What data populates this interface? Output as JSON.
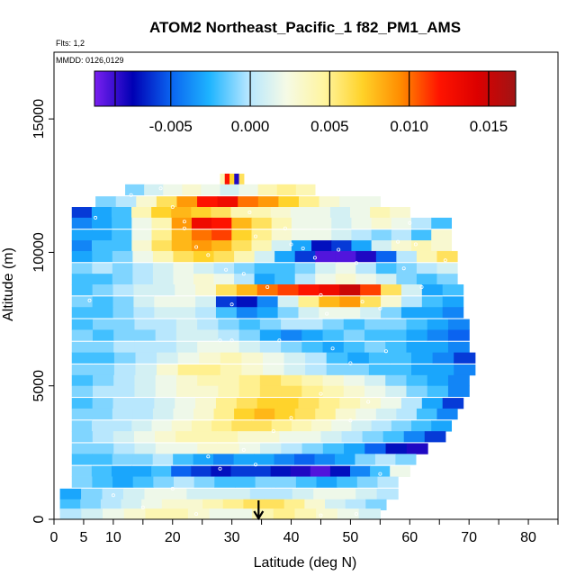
{
  "chart_data": {
    "type": "heatmap",
    "title": "ATOM2 Northeast_Pacific_1 f82_PM1_AMS",
    "subtitle_flights": "Flts: 1,2",
    "subtitle_dates": "MMDD: 0126,0129",
    "xlabel": "Latitude (deg N)",
    "ylabel": "Altitude (m)",
    "xlim": [
      0,
      85
    ],
    "ylim": [
      0,
      17500
    ],
    "x_ticks": [
      0,
      5,
      10,
      20,
      30,
      40,
      50,
      60,
      70,
      80
    ],
    "y_ticks": [
      0,
      5000,
      10000,
      15000
    ],
    "colorbar": {
      "min": -0.0098,
      "max": 0.0167,
      "ticks": [
        -0.005,
        0.0,
        0.005,
        0.01,
        0.015
      ],
      "tick_labels": [
        "-0.005",
        "0.000",
        "0.005",
        "0.010",
        "0.015"
      ],
      "colors": [
        "#7a1ff0",
        "#0000b4",
        "#0a64f0",
        "#1eb4ff",
        "#b4e6ff",
        "#f5fae6",
        "#fff5a0",
        "#ffd228",
        "#ff8c00",
        "#ff1400",
        "#dc0000",
        "#a01414"
      ]
    },
    "arrow_latitude": 34.5,
    "cells": [
      {
        "alt": 12750,
        "lat0": 28,
        "lat1": 32,
        "values": [
          0.004,
          0.012,
          0.007,
          -0.008,
          0.006
        ]
      },
      {
        "alt": 12350,
        "lat0": 12,
        "lat1": 44,
        "values": [
          -0.001,
          0.001,
          0.002,
          0.003,
          0.002,
          0.001,
          0.002,
          0.004,
          0.005,
          0.004
        ]
      },
      {
        "alt": 11900,
        "lat0": 7,
        "lat1": 55,
        "values": [
          -0.001,
          0.0,
          0.003,
          0.006,
          0.009,
          0.012,
          0.013,
          0.01,
          0.009,
          0.007,
          0.005,
          0.003,
          0.002,
          0.002
        ]
      },
      {
        "alt": 11500,
        "lat0": 3,
        "lat1": 60,
        "values": [
          -0.006,
          -0.003,
          -0.002,
          0.004,
          0.007,
          0.008,
          0.007,
          0.006,
          0.004,
          0.004,
          0.003,
          0.002,
          0.002,
          0.001,
          0.002,
          0.004,
          0.003
        ]
      },
      {
        "alt": 11100,
        "lat0": 3,
        "lat1": 67,
        "values": [
          -0.004,
          -0.003,
          -0.002,
          0.002,
          0.004,
          0.009,
          0.013,
          0.012,
          0.008,
          0.006,
          0.004,
          0.002,
          0.002,
          0.001,
          0.002,
          0.003,
          0.002,
          0.0,
          -0.002
        ]
      },
      {
        "alt": 10650,
        "lat0": 3,
        "lat1": 67,
        "values": [
          -0.003,
          -0.003,
          -0.002,
          0.002,
          0.005,
          0.008,
          0.01,
          0.011,
          0.007,
          0.005,
          0.003,
          0.002,
          0.002,
          0.001,
          0.0,
          -0.001,
          0.0,
          -0.002,
          0.003
        ]
      },
      {
        "alt": 10250,
        "lat0": 3,
        "lat1": 67,
        "values": [
          -0.004,
          -0.002,
          -0.002,
          0.003,
          0.006,
          0.008,
          0.009,
          0.008,
          0.006,
          0.004,
          0.001,
          -0.003,
          -0.007,
          -0.006,
          -0.003,
          0.001,
          0.003,
          0.004,
          0.003
        ]
      },
      {
        "alt": 9850,
        "lat0": 3,
        "lat1": 68,
        "values": [
          -0.003,
          -0.002,
          -0.001,
          0.002,
          0.004,
          0.006,
          0.007,
          0.006,
          0.004,
          0.001,
          -0.003,
          -0.006,
          -0.009,
          -0.009,
          -0.008,
          -0.005,
          0.0,
          0.004,
          0.006
        ]
      },
      {
        "alt": 9400,
        "lat0": 3,
        "lat1": 68,
        "values": [
          -0.001,
          0.0,
          -0.001,
          0.0,
          0.001,
          0.002,
          0.001,
          0.0,
          -0.001,
          -0.002,
          -0.002,
          -0.001,
          0.001,
          0.002,
          0.0,
          -0.002,
          -0.001,
          0.0,
          0.001
        ]
      },
      {
        "alt": 9000,
        "lat0": 3,
        "lat1": 68,
        "values": [
          -0.002,
          -0.002,
          -0.001,
          0.0,
          0.001,
          0.002,
          0.003,
          0.002,
          0.0,
          -0.003,
          -0.002,
          0.0,
          0.002,
          0.003,
          0.002,
          0.001,
          -0.001,
          -0.002,
          -0.001
        ]
      },
      {
        "alt": 8600,
        "lat0": 3,
        "lat1": 69,
        "values": [
          -0.002,
          -0.001,
          0.0,
          0.001,
          0.001,
          0.002,
          0.003,
          0.006,
          0.008,
          0.01,
          0.011,
          0.012,
          0.013,
          0.015,
          0.011,
          0.006,
          0.001,
          -0.003,
          -0.002
        ]
      },
      {
        "alt": 8150,
        "lat0": 3,
        "lat1": 69,
        "values": [
          -0.001,
          -0.002,
          -0.001,
          0.001,
          0.002,
          0.002,
          0.001,
          -0.006,
          -0.007,
          -0.004,
          0.001,
          0.005,
          0.008,
          0.009,
          0.006,
          0.003,
          0.0,
          -0.002,
          -0.003
        ]
      },
      {
        "alt": 7750,
        "lat0": 3,
        "lat1": 69,
        "values": [
          -0.002,
          -0.002,
          -0.001,
          0.0,
          0.001,
          0.001,
          0.0,
          -0.002,
          -0.004,
          -0.003,
          -0.001,
          0.001,
          0.002,
          0.002,
          0.001,
          -0.001,
          -0.003,
          -0.003,
          -0.004
        ]
      },
      {
        "alt": 7300,
        "lat0": 3,
        "lat1": 70,
        "values": [
          -0.002,
          -0.001,
          -0.001,
          0.0,
          0.0,
          0.001,
          0.0,
          -0.001,
          -0.002,
          -0.001,
          0.0,
          0.0,
          -0.001,
          -0.002,
          -0.001,
          -0.001,
          -0.002,
          -0.003,
          -0.004
        ]
      },
      {
        "alt": 6900,
        "lat0": 3,
        "lat1": 70,
        "values": [
          -0.001,
          -0.002,
          -0.001,
          -0.001,
          0.0,
          0.001,
          0.001,
          0.0,
          -0.001,
          -0.003,
          -0.004,
          -0.003,
          -0.002,
          -0.001,
          -0.002,
          -0.002,
          -0.003,
          -0.004,
          -0.005
        ]
      },
      {
        "alt": 6450,
        "lat0": 3,
        "lat1": 70,
        "values": [
          -0.001,
          -0.001,
          0.0,
          0.0,
          0.0,
          0.001,
          0.002,
          0.002,
          0.001,
          0.0,
          -0.001,
          -0.002,
          -0.003,
          -0.002,
          -0.001,
          -0.002,
          -0.003,
          -0.003,
          -0.004
        ]
      },
      {
        "alt": 6050,
        "lat0": 3,
        "lat1": 71,
        "values": [
          -0.002,
          -0.002,
          -0.001,
          0.0,
          0.001,
          0.002,
          0.003,
          0.004,
          0.003,
          0.002,
          0.001,
          0.0,
          -0.002,
          -0.003,
          -0.002,
          -0.002,
          -0.003,
          -0.004,
          -0.006
        ]
      },
      {
        "alt": 5600,
        "lat0": 3,
        "lat1": 71,
        "values": [
          -0.001,
          -0.001,
          0.0,
          0.001,
          0.003,
          0.005,
          0.005,
          0.004,
          0.003,
          0.002,
          0.001,
          0.0,
          -0.001,
          -0.001,
          -0.002,
          -0.002,
          -0.003,
          -0.003,
          -0.004
        ]
      },
      {
        "alt": 5200,
        "lat0": 3,
        "lat1": 70,
        "values": [
          -0.002,
          -0.001,
          0.0,
          0.001,
          0.002,
          0.003,
          0.004,
          0.004,
          0.005,
          0.006,
          0.005,
          0.004,
          0.003,
          0.002,
          0.001,
          -0.001,
          -0.002,
          -0.003,
          -0.004
        ]
      },
      {
        "alt": 4800,
        "lat0": 3,
        "lat1": 70,
        "values": [
          -0.001,
          0.0,
          0.0,
          0.001,
          0.002,
          0.003,
          0.003,
          0.004,
          0.005,
          0.006,
          0.006,
          0.005,
          0.004,
          0.003,
          0.002,
          0.001,
          -0.001,
          -0.002,
          -0.004
        ]
      },
      {
        "alt": 4350,
        "lat0": 3,
        "lat1": 69,
        "values": [
          -0.002,
          -0.001,
          0.0,
          0.0,
          0.001,
          0.002,
          0.003,
          0.005,
          0.006,
          0.007,
          0.007,
          0.006,
          0.005,
          0.004,
          0.003,
          0.002,
          0.0,
          -0.003,
          -0.006
        ]
      },
      {
        "alt": 3950,
        "lat0": 3,
        "lat1": 68,
        "values": [
          -0.001,
          -0.001,
          0.0,
          0.0,
          0.001,
          0.002,
          0.003,
          0.005,
          0.007,
          0.008,
          0.007,
          0.006,
          0.005,
          0.003,
          0.002,
          0.001,
          0.0,
          -0.002,
          -0.004
        ]
      },
      {
        "alt": 3500,
        "lat0": 3,
        "lat1": 67,
        "values": [
          -0.001,
          0.0,
          0.0,
          0.001,
          0.002,
          0.003,
          0.004,
          0.005,
          0.006,
          0.006,
          0.005,
          0.004,
          0.003,
          0.002,
          0.001,
          0.0,
          -0.001,
          -0.002,
          -0.003
        ]
      },
      {
        "alt": 3100,
        "lat0": 3,
        "lat1": 66,
        "values": [
          -0.001,
          0.0,
          0.001,
          0.002,
          0.003,
          0.004,
          0.004,
          0.004,
          0.003,
          0.003,
          0.002,
          0.002,
          0.001,
          0.0,
          -0.001,
          -0.002,
          -0.004,
          -0.006
        ]
      },
      {
        "alt": 2650,
        "lat0": 3,
        "lat1": 63,
        "values": [
          -0.001,
          -0.001,
          0.0,
          0.001,
          0.002,
          0.002,
          0.003,
          0.003,
          0.002,
          0.001,
          0.0,
          -0.001,
          -0.002,
          -0.003,
          -0.005,
          -0.007,
          -0.008
        ]
      },
      {
        "alt": 2250,
        "lat0": 3,
        "lat1": 61,
        "values": [
          -0.002,
          -0.002,
          -0.001,
          -0.001,
          0.0,
          -0.002,
          -0.003,
          -0.004,
          -0.003,
          -0.003,
          -0.004,
          -0.005,
          -0.004,
          -0.003,
          -0.001,
          0.0,
          -0.001
        ]
      },
      {
        "alt": 1800,
        "lat0": 3,
        "lat1": 60,
        "values": [
          -0.001,
          -0.002,
          -0.003,
          -0.003,
          -0.002,
          -0.005,
          -0.006,
          -0.007,
          -0.006,
          -0.006,
          -0.007,
          -0.008,
          -0.009,
          -0.007,
          -0.004,
          -0.002,
          0.002
        ]
      },
      {
        "alt": 1400,
        "lat0": 3,
        "lat1": 58,
        "values": [
          -0.001,
          -0.002,
          -0.003,
          -0.002,
          -0.001,
          0.0,
          -0.001,
          -0.002,
          -0.002,
          -0.001,
          -0.001,
          -0.002,
          -0.003,
          -0.002,
          -0.001,
          0.0
        ]
      },
      {
        "alt": 950,
        "lat0": 1,
        "lat1": 58,
        "values": [
          -0.003,
          -0.001,
          0.0,
          0.001,
          0.002,
          0.002,
          0.001,
          0.001,
          0.001,
          0.0,
          0.0,
          0.001,
          0.002,
          0.002,
          0.001,
          0.0
        ]
      },
      {
        "alt": 550,
        "lat0": 1,
        "lat1": 56,
        "values": [
          -0.002,
          -0.001,
          0.0,
          0.001,
          0.002,
          0.003,
          0.003,
          0.004,
          0.005,
          0.006,
          0.006,
          0.005,
          0.003,
          0.001,
          0.0,
          -0.001
        ]
      },
      {
        "alt": 200,
        "lat0": 1,
        "lat1": 55,
        "values": [
          0.0,
          0.001,
          0.002,
          0.003,
          0.004,
          0.004,
          0.003,
          0.002,
          0.002,
          0.004,
          0.005,
          0.004,
          0.003,
          0.002,
          0.001
        ]
      }
    ],
    "points": [
      [
        6,
        8200
      ],
      [
        7,
        11300
      ],
      [
        13,
        12150
      ],
      [
        18,
        12400
      ],
      [
        20,
        11700
      ],
      [
        22,
        11150
      ],
      [
        22,
        10900
      ],
      [
        24,
        10200
      ],
      [
        26,
        9900
      ],
      [
        28,
        6700
      ],
      [
        29,
        9350
      ],
      [
        30,
        8050
      ],
      [
        32,
        9200
      ],
      [
        33,
        11500
      ],
      [
        34,
        10600
      ],
      [
        36,
        8700
      ],
      [
        38,
        6700
      ],
      [
        39,
        10900
      ],
      [
        40,
        10300
      ],
      [
        42,
        10150
      ],
      [
        44,
        9800
      ],
      [
        45,
        8400
      ],
      [
        46,
        7700
      ],
      [
        47,
        6400
      ],
      [
        48,
        10100
      ],
      [
        50,
        5850
      ],
      [
        51,
        9600
      ],
      [
        52,
        8150
      ],
      [
        53,
        4400
      ],
      [
        55,
        7900
      ],
      [
        56,
        6300
      ],
      [
        58,
        10400
      ],
      [
        59,
        9400
      ],
      [
        60,
        11100
      ],
      [
        61,
        10300
      ],
      [
        62,
        8700
      ],
      [
        64,
        11400
      ],
      [
        66,
        9700
      ],
      [
        10,
        900
      ],
      [
        15,
        450
      ],
      [
        20,
        1150
      ],
      [
        24,
        200
      ],
      [
        26,
        2350
      ],
      [
        28,
        1900
      ],
      [
        30,
        6700
      ],
      [
        32,
        2600
      ],
      [
        34,
        2050
      ],
      [
        37,
        3300
      ],
      [
        40,
        3800
      ],
      [
        45,
        150
      ],
      [
        51,
        200
      ],
      [
        55,
        1700
      ],
      [
        58,
        400
      ],
      [
        45,
        4700
      ],
      [
        50,
        3700
      ]
    ]
  }
}
